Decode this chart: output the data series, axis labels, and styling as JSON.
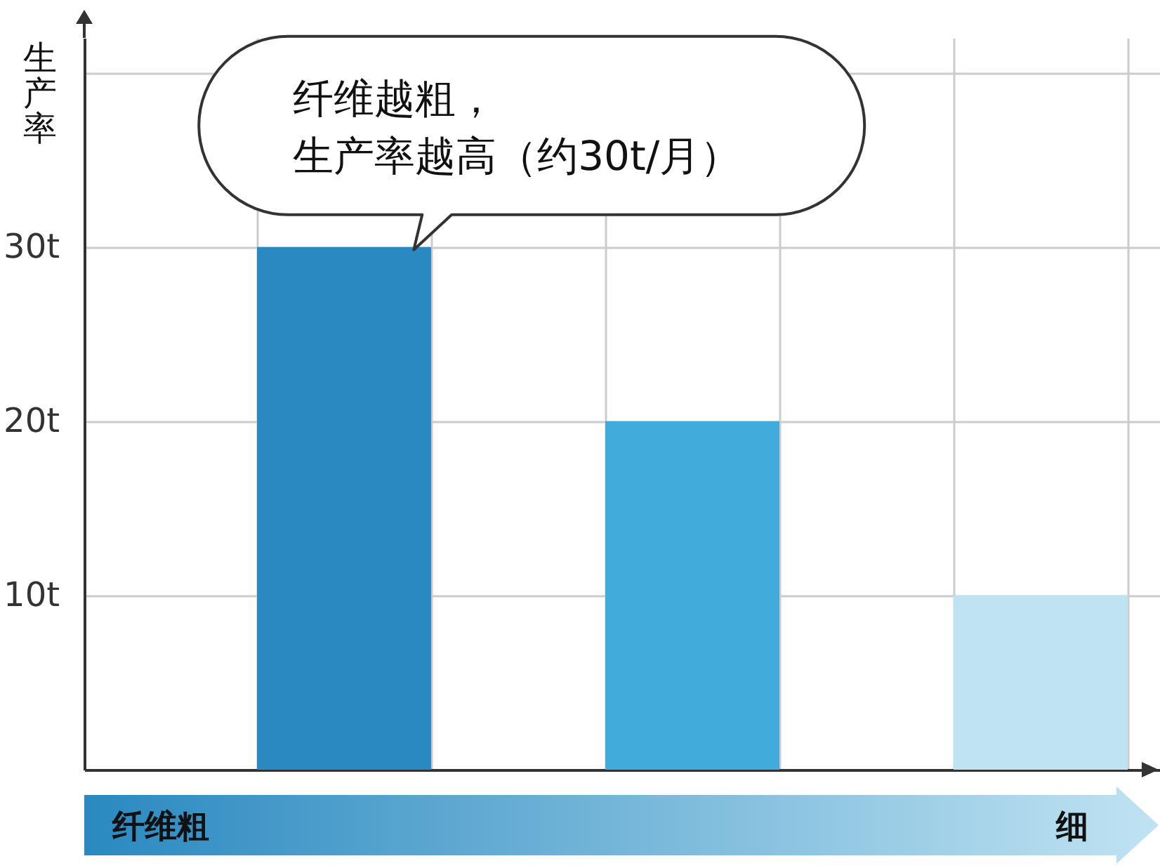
{
  "chart_data": {
    "type": "bar",
    "ylabel": "生产率",
    "categories": [
      null,
      null,
      null
    ],
    "values": [
      30,
      20,
      10
    ],
    "colors": [
      "#2a89c0",
      "#41abdb",
      "#c0e3f2"
    ],
    "ylim": [
      0,
      42
    ],
    "yticks": [
      {
        "value": 10,
        "label": "10t"
      },
      {
        "value": 20,
        "label": "20t"
      },
      {
        "value": 30,
        "label": "30t"
      },
      {
        "value": 40,
        "label": null
      }
    ],
    "grid": true,
    "annotations": [
      "纤维越粗，生产率越高（约30t/月）",
      "纤维粗",
      "细"
    ]
  }
}
